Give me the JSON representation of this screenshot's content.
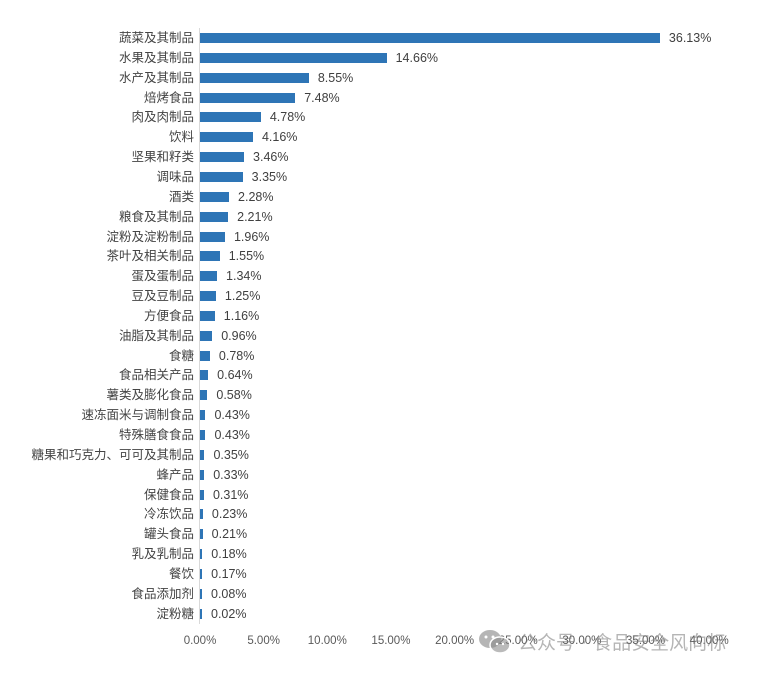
{
  "chart_data": {
    "type": "bar",
    "orientation": "horizontal",
    "title": "",
    "xlabel": "",
    "ylabel": "",
    "xlim": [
      0,
      40
    ],
    "x_ticks": [
      "0.00%",
      "5.00%",
      "10.00%",
      "15.00%",
      "20.00%",
      "25.00%",
      "30.00%",
      "35.00%",
      "40.00%"
    ],
    "grid": false,
    "legend": null,
    "bar_color": "#2e75b6",
    "categories": [
      "蔬菜及其制品",
      "水果及其制品",
      "水产及其制品",
      "焙烤食品",
      "肉及肉制品",
      "饮料",
      "坚果和籽类",
      "调味品",
      "酒类",
      "粮食及其制品",
      "淀粉及淀粉制品",
      "茶叶及相关制品",
      "蛋及蛋制品",
      "豆及豆制品",
      "方便食品",
      "油脂及其制品",
      "食糖",
      "食品相关产品",
      "薯类及膨化食品",
      "速冻面米与调制食品",
      "特殊膳食食品",
      "糖果和巧克力、可可及其制品",
      "蜂产品",
      "保健食品",
      "冷冻饮品",
      "罐头食品",
      "乳及乳制品",
      "餐饮",
      "食品添加剂",
      "淀粉糖"
    ],
    "values": [
      36.13,
      14.66,
      8.55,
      7.48,
      4.78,
      4.16,
      3.46,
      3.35,
      2.28,
      2.21,
      1.96,
      1.55,
      1.34,
      1.25,
      1.16,
      0.96,
      0.78,
      0.64,
      0.58,
      0.43,
      0.43,
      0.35,
      0.33,
      0.31,
      0.23,
      0.21,
      0.18,
      0.17,
      0.08,
      0.02
    ],
    "value_labels": [
      "36.13%",
      "14.66%",
      "8.55%",
      "7.48%",
      "4.78%",
      "4.16%",
      "3.46%",
      "3.35%",
      "2.28%",
      "2.21%",
      "1.96%",
      "1.55%",
      "1.34%",
      "1.25%",
      "1.16%",
      "0.96%",
      "0.78%",
      "0.64%",
      "0.58%",
      "0.43%",
      "0.43%",
      "0.35%",
      "0.33%",
      "0.31%",
      "0.23%",
      "0.21%",
      "0.18%",
      "0.17%",
      "0.08%",
      "0.02%"
    ]
  },
  "watermark": {
    "text": "公众号 · 食品安全风向标",
    "icon": "wechat-icon"
  }
}
